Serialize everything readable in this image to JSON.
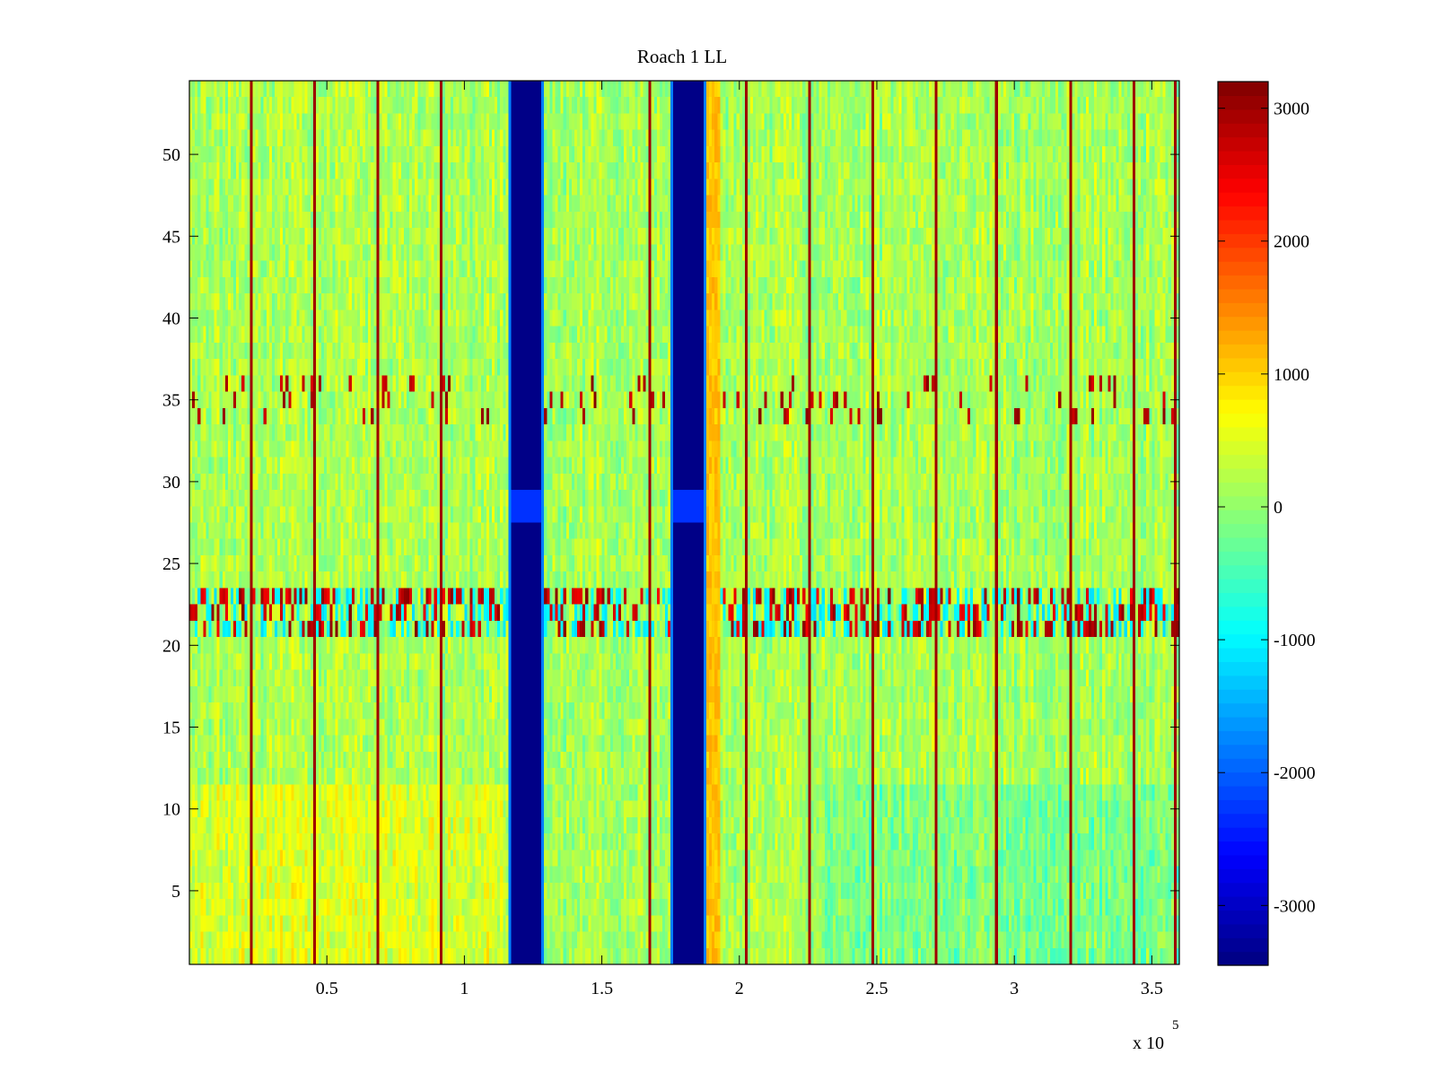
{
  "chart_data": {
    "type": "heatmap",
    "title": "Roach 1 LL",
    "xlabel": "",
    "ylabel": "",
    "x_exponent_label": "x 10",
    "x_exponent_power": "5",
    "xlim": [
      0,
      3.6
    ],
    "ylim": [
      0.5,
      54.5
    ],
    "x_ticks": [
      0.5,
      1,
      1.5,
      2,
      2.5,
      3,
      3.5
    ],
    "x_tick_labels": [
      "0.5",
      "1",
      "1.5",
      "2",
      "2.5",
      "3",
      "3.5"
    ],
    "y_ticks": [
      5,
      10,
      15,
      20,
      25,
      30,
      35,
      40,
      45,
      50
    ],
    "y_tick_labels": [
      "5",
      "10",
      "15",
      "20",
      "25",
      "30",
      "35",
      "40",
      "45",
      "50"
    ],
    "colorbar": {
      "colormap": "jet",
      "range": [
        -3450,
        3200
      ],
      "ticks": [
        -3000,
        -2000,
        -1000,
        0,
        1000,
        2000,
        3000
      ],
      "tick_labels": [
        "-3000",
        "-2000",
        "-1000",
        "0",
        "1000",
        "2000",
        "3000"
      ]
    },
    "baseline_value": 150,
    "features": {
      "deep_bands": [
        {
          "name": "band-1",
          "x_start": 1.17,
          "x_end": 1.28,
          "value": -3400
        },
        {
          "name": "band-2",
          "x_start": 1.76,
          "x_end": 1.87,
          "value": -3400
        }
      ],
      "band_rows_lighter": [
        28,
        29
      ],
      "warm_band": {
        "x_start": 1.87,
        "x_end": 1.93,
        "value": 1100
      },
      "spike_columns_x": [
        0.22,
        0.45,
        0.68,
        0.91,
        1.67,
        1.75,
        2.02,
        2.25,
        2.48,
        2.71,
        2.93,
        3.2,
        3.43,
        3.58
      ],
      "spike_value": 3000,
      "noisy_rows": [
        21,
        22,
        23
      ],
      "sparse_rows": [
        34,
        35,
        36
      ]
    }
  }
}
